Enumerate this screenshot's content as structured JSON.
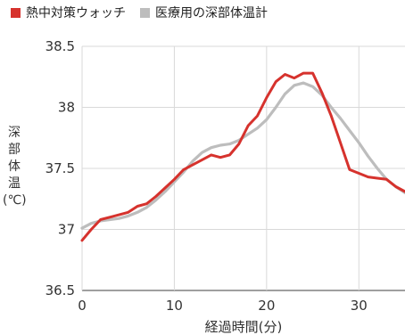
{
  "legend": [
    {
      "label": "熱中対策ウォッチ",
      "color": "#d6322d"
    },
    {
      "label": "医療用の深部体温計",
      "color": "#bdbdbd"
    }
  ],
  "chart_data": {
    "type": "line",
    "xlabel": "経過時間(分)",
    "ylabel_chars": [
      "深",
      "部",
      "体",
      "温"
    ],
    "ylabel_unit": "(℃)",
    "xlim": [
      0,
      35
    ],
    "ylim": [
      36.5,
      38.5
    ],
    "x_ticks": [
      0,
      10,
      20,
      30
    ],
    "y_ticks": [
      36.5,
      37,
      37.5,
      38,
      38.5
    ],
    "y_tick_labels": [
      "36.5",
      "37",
      "37.5",
      "38",
      "38.5"
    ],
    "grid": true,
    "series": [
      {
        "name": "熱中対策ウォッチ",
        "color": "#d6322d",
        "x": [
          0,
          1,
          2,
          3,
          4,
          5,
          6,
          7,
          8,
          9,
          10,
          11,
          12,
          13,
          14,
          15,
          16,
          17,
          18,
          19,
          20,
          21,
          22,
          23,
          24,
          25,
          26,
          27,
          28,
          29,
          30,
          31,
          32,
          33,
          34,
          35
        ],
        "y": [
          36.91,
          37.0,
          37.08,
          37.1,
          37.12,
          37.14,
          37.19,
          37.21,
          37.27,
          37.34,
          37.41,
          37.49,
          37.53,
          37.57,
          37.61,
          37.59,
          37.61,
          37.7,
          37.85,
          37.93,
          38.08,
          38.21,
          38.27,
          38.24,
          38.28,
          38.28,
          38.12,
          37.93,
          37.71,
          37.49,
          37.46,
          37.43,
          37.42,
          37.41,
          37.35,
          37.31
        ]
      },
      {
        "name": "医療用の深部体温計",
        "color": "#bdbdbd",
        "x": [
          0,
          1,
          2,
          3,
          4,
          5,
          6,
          7,
          8,
          9,
          10,
          11,
          12,
          13,
          14,
          15,
          16,
          17,
          18,
          19,
          20,
          21,
          22,
          23,
          24,
          25,
          26,
          27,
          28,
          29,
          30,
          31,
          32,
          33,
          34,
          35
        ],
        "y": [
          37.01,
          37.05,
          37.07,
          37.08,
          37.09,
          37.11,
          37.14,
          37.18,
          37.24,
          37.31,
          37.39,
          37.47,
          37.56,
          37.63,
          37.67,
          37.69,
          37.7,
          37.73,
          37.78,
          37.83,
          37.9,
          38.0,
          38.11,
          38.18,
          38.2,
          38.17,
          38.1,
          38.0,
          37.91,
          37.81,
          37.71,
          37.6,
          37.5,
          37.41,
          37.35,
          37.3
        ]
      }
    ]
  }
}
